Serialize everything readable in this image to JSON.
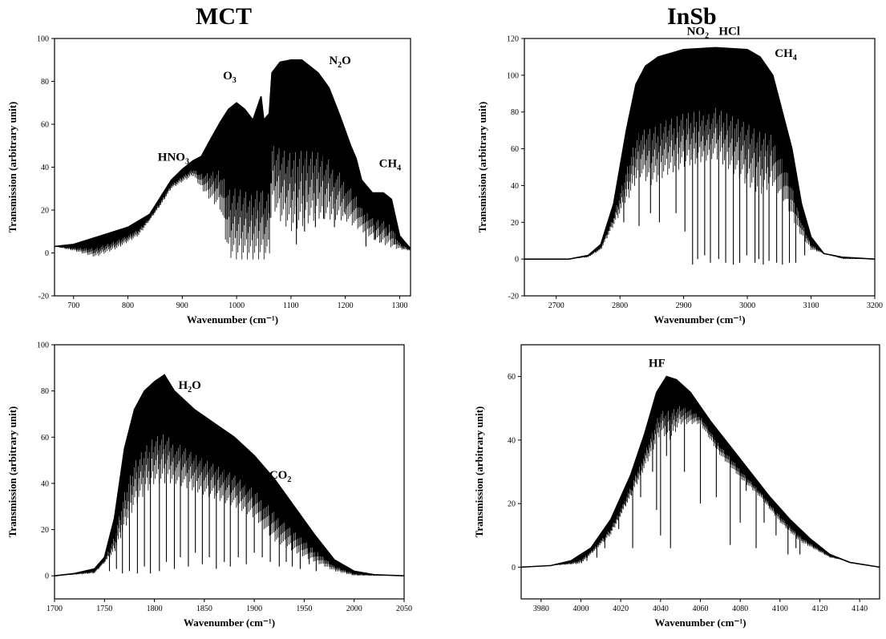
{
  "titles": {
    "left": "MCT",
    "right": "InSb"
  },
  "chart_data": [
    {
      "type": "line",
      "column": "MCT",
      "xlabel": "Wavenumber (cm⁻¹)",
      "ylabel": "Transmission (arbitrary unit)",
      "xlim": [
        665,
        1320
      ],
      "ylim": [
        -20,
        100
      ],
      "xticks": [
        700,
        800,
        900,
        1000,
        1100,
        1200,
        1300
      ],
      "yticks": [
        -20,
        0,
        20,
        40,
        60,
        80,
        100
      ],
      "envelope": [
        [
          665,
          3
        ],
        [
          700,
          4
        ],
        [
          750,
          8
        ],
        [
          800,
          12
        ],
        [
          840,
          18
        ],
        [
          860,
          26
        ],
        [
          880,
          34
        ],
        [
          900,
          39
        ],
        [
          920,
          43
        ],
        [
          935,
          45
        ],
        [
          950,
          52
        ],
        [
          970,
          61
        ],
        [
          985,
          67
        ],
        [
          1000,
          70
        ],
        [
          1015,
          67
        ],
        [
          1030,
          62
        ],
        [
          1045,
          73
        ],
        [
          1050,
          62
        ],
        [
          1060,
          65
        ],
        [
          1065,
          84
        ],
        [
          1080,
          89
        ],
        [
          1100,
          90
        ],
        [
          1120,
          90
        ],
        [
          1150,
          84
        ],
        [
          1170,
          77
        ],
        [
          1190,
          64
        ],
        [
          1210,
          50
        ],
        [
          1220,
          44
        ],
        [
          1230,
          34
        ],
        [
          1250,
          28
        ],
        [
          1270,
          28
        ],
        [
          1285,
          25
        ],
        [
          1300,
          8
        ],
        [
          1320,
          2
        ]
      ],
      "baseline": [
        [
          665,
          3
        ],
        [
          700,
          1
        ],
        [
          740,
          -2
        ],
        [
          780,
          2
        ],
        [
          820,
          8
        ],
        [
          840,
          15
        ],
        [
          860,
          22
        ],
        [
          880,
          30
        ],
        [
          900,
          33
        ],
        [
          920,
          36
        ],
        [
          935,
          30
        ],
        [
          950,
          25
        ],
        [
          970,
          20
        ],
        [
          985,
          -2
        ],
        [
          1000,
          -3
        ],
        [
          1020,
          -3
        ],
        [
          1045,
          -3
        ],
        [
          1060,
          -3
        ],
        [
          1065,
          22
        ],
        [
          1080,
          15
        ],
        [
          1100,
          10
        ],
        [
          1150,
          16
        ],
        [
          1200,
          15
        ],
        [
          1230,
          10
        ],
        [
          1260,
          5
        ],
        [
          1290,
          2
        ],
        [
          1320,
          1
        ]
      ],
      "dips": [
        [
          1110,
          4
        ],
        [
          1125,
          10
        ],
        [
          1145,
          12
        ],
        [
          1160,
          16
        ],
        [
          1180,
          12
        ],
        [
          1200,
          18
        ],
        [
          1238,
          3
        ],
        [
          1255,
          6
        ],
        [
          1266,
          5
        ],
        [
          1278,
          8
        ],
        [
          1290,
          4
        ],
        [
          1307,
          2
        ],
        [
          965,
          30
        ],
        [
          955,
          35
        ]
      ],
      "annotations": [
        {
          "label": "HNO",
          "sub": "3",
          "x": 855,
          "y": 43
        },
        {
          "label": "O",
          "sub": "3",
          "x": 975,
          "y": 81
        },
        {
          "label": "N",
          "sub": "2",
          "tail": "O",
          "x": 1170,
          "y": 88
        },
        {
          "label": "CH",
          "sub": "4",
          "x": 1262,
          "y": 40
        }
      ]
    },
    {
      "type": "line",
      "column": "InSb",
      "xlabel": "Wavenumber (cm⁻¹)",
      "ylabel": "Transmission (arbitrary unit)",
      "xlim": [
        2650,
        3200
      ],
      "ylim": [
        -20,
        120
      ],
      "xticks": [
        2700,
        2800,
        2900,
        3000,
        3100,
        3200
      ],
      "yticks": [
        -20,
        0,
        20,
        40,
        60,
        80,
        100,
        120
      ],
      "envelope": [
        [
          2650,
          0
        ],
        [
          2720,
          0
        ],
        [
          2750,
          2
        ],
        [
          2770,
          8
        ],
        [
          2790,
          30
        ],
        [
          2810,
          70
        ],
        [
          2825,
          95
        ],
        [
          2840,
          105
        ],
        [
          2860,
          110
        ],
        [
          2900,
          114
        ],
        [
          2950,
          115
        ],
        [
          3000,
          114
        ],
        [
          3020,
          110
        ],
        [
          3040,
          100
        ],
        [
          3055,
          80
        ],
        [
          3070,
          60
        ],
        [
          3085,
          30
        ],
        [
          3100,
          12
        ],
        [
          3120,
          3
        ],
        [
          3150,
          1
        ],
        [
          3200,
          0
        ]
      ],
      "baseline": [
        [
          2650,
          0
        ],
        [
          2720,
          0
        ],
        [
          2750,
          1
        ],
        [
          2770,
          5
        ],
        [
          2790,
          18
        ],
        [
          2810,
          30
        ],
        [
          2830,
          45
        ],
        [
          2850,
          40
        ],
        [
          2870,
          45
        ],
        [
          2900,
          50
        ],
        [
          2950,
          55
        ],
        [
          3000,
          40
        ],
        [
          3020,
          35
        ],
        [
          3040,
          40
        ],
        [
          3060,
          30
        ],
        [
          3080,
          15
        ],
        [
          3100,
          5
        ],
        [
          3150,
          0
        ],
        [
          3200,
          0
        ]
      ],
      "dips": [
        [
          2806,
          20
        ],
        [
          2830,
          18
        ],
        [
          2848,
          25
        ],
        [
          2862,
          20
        ],
        [
          2888,
          25
        ],
        [
          2902,
          15
        ],
        [
          2914,
          -3
        ],
        [
          2922,
          0
        ],
        [
          2933,
          2
        ],
        [
          2942,
          -2
        ],
        [
          2955,
          0
        ],
        [
          2966,
          -2
        ],
        [
          2978,
          -3
        ],
        [
          2988,
          -2
        ],
        [
          2999,
          2
        ],
        [
          3012,
          -2
        ],
        [
          3018,
          0
        ],
        [
          3025,
          -3
        ],
        [
          3034,
          -1
        ],
        [
          3046,
          -2
        ],
        [
          3055,
          -3
        ],
        [
          3066,
          -2
        ],
        [
          3076,
          -2
        ],
        [
          3090,
          2
        ]
      ],
      "annotations": [
        {
          "label": "NO",
          "sub": "2",
          "x": 2905,
          "y": 122
        },
        {
          "label": "HCl",
          "sub": "",
          "x": 2955,
          "y": 122
        },
        {
          "label": "CH",
          "sub": "4",
          "x": 3043,
          "y": 110
        }
      ]
    },
    {
      "type": "line",
      "column": "MCT",
      "xlabel": "Wavenumber (cm⁻¹)",
      "ylabel": "Transmission (arbitrary unit)",
      "xlim": [
        1700,
        2050
      ],
      "ylim": [
        -10,
        100
      ],
      "xticks": [
        1700,
        1750,
        1800,
        1850,
        1900,
        1950,
        2000,
        2050
      ],
      "yticks": [
        0,
        20,
        40,
        60,
        80,
        100
      ],
      "envelope": [
        [
          1700,
          0
        ],
        [
          1720,
          1
        ],
        [
          1740,
          3
        ],
        [
          1750,
          8
        ],
        [
          1760,
          25
        ],
        [
          1770,
          55
        ],
        [
          1780,
          72
        ],
        [
          1790,
          80
        ],
        [
          1800,
          84
        ],
        [
          1810,
          87
        ],
        [
          1820,
          80
        ],
        [
          1840,
          72
        ],
        [
          1860,
          66
        ],
        [
          1880,
          60
        ],
        [
          1900,
          52
        ],
        [
          1920,
          42
        ],
        [
          1940,
          30
        ],
        [
          1960,
          18
        ],
        [
          1980,
          7
        ],
        [
          2000,
          2
        ],
        [
          2020,
          0.5
        ],
        [
          2050,
          0
        ]
      ],
      "baseline": [
        [
          1700,
          0
        ],
        [
          1740,
          1
        ],
        [
          1760,
          10
        ],
        [
          1780,
          30
        ],
        [
          1800,
          40
        ],
        [
          1820,
          40
        ],
        [
          1850,
          35
        ],
        [
          1880,
          30
        ],
        [
          1900,
          25
        ],
        [
          1920,
          15
        ],
        [
          1950,
          8
        ],
        [
          1980,
          2
        ],
        [
          2000,
          0
        ],
        [
          2050,
          0
        ]
      ],
      "dips": [
        [
          1755,
          2
        ],
        [
          1762,
          3
        ],
        [
          1768,
          1
        ],
        [
          1775,
          2
        ],
        [
          1783,
          1
        ],
        [
          1790,
          4
        ],
        [
          1796,
          1
        ],
        [
          1805,
          2
        ],
        [
          1812,
          6
        ],
        [
          1820,
          3
        ],
        [
          1826,
          8
        ],
        [
          1834,
          4
        ],
        [
          1841,
          10
        ],
        [
          1848,
          5
        ],
        [
          1855,
          8
        ],
        [
          1862,
          3
        ],
        [
          1870,
          6
        ],
        [
          1876,
          4
        ],
        [
          1884,
          8
        ],
        [
          1892,
          5
        ],
        [
          1900,
          10
        ],
        [
          1908,
          8
        ],
        [
          1916,
          6
        ],
        [
          1925,
          4
        ],
        [
          1932,
          6
        ],
        [
          1938,
          4
        ],
        [
          1946,
          3
        ],
        [
          1955,
          5
        ],
        [
          1962,
          2
        ]
      ],
      "annotations": [
        {
          "label": "H",
          "sub": "2",
          "tail": "O",
          "x": 1824,
          "y": 81
        },
        {
          "label": "CO",
          "sub": "2",
          "x": 1915,
          "y": 42
        }
      ]
    },
    {
      "type": "line",
      "column": "InSb",
      "xlabel": "Wavenumber (cm⁻¹)",
      "ylabel": "Transmission (arbitrary unit)",
      "xlim": [
        3970,
        4150
      ],
      "ylim": [
        -10,
        70
      ],
      "xticks": [
        3980,
        4000,
        4020,
        4040,
        4060,
        4080,
        4100,
        4120,
        4140
      ],
      "yticks": [
        0,
        20,
        40,
        60
      ],
      "envelope": [
        [
          3970,
          0
        ],
        [
          3985,
          0.5
        ],
        [
          3995,
          2
        ],
        [
          4005,
          6
        ],
        [
          4015,
          15
        ],
        [
          4025,
          29
        ],
        [
          4032,
          42
        ],
        [
          4038,
          55
        ],
        [
          4043,
          60
        ],
        [
          4048,
          59
        ],
        [
          4055,
          55
        ],
        [
          4065,
          46
        ],
        [
          4075,
          38
        ],
        [
          4085,
          30
        ],
        [
          4095,
          22
        ],
        [
          4105,
          15
        ],
        [
          4115,
          9
        ],
        [
          4125,
          4
        ],
        [
          4135,
          1.5
        ],
        [
          4150,
          0
        ]
      ],
      "baseline": [
        [
          3970,
          0
        ],
        [
          4000,
          1
        ],
        [
          4015,
          10
        ],
        [
          4025,
          22
        ],
        [
          4035,
          35
        ],
        [
          4040,
          42
        ],
        [
          4045,
          40
        ],
        [
          4050,
          45
        ],
        [
          4060,
          45
        ],
        [
          4070,
          35
        ],
        [
          4080,
          28
        ],
        [
          4090,
          22
        ],
        [
          4100,
          14
        ],
        [
          4110,
          8
        ],
        [
          4125,
          3
        ],
        [
          4150,
          0
        ]
      ],
      "dips": [
        [
          4003,
          2
        ],
        [
          4008,
          3
        ],
        [
          4012,
          6
        ],
        [
          4015,
          14
        ],
        [
          4019,
          12
        ],
        [
          4022,
          20
        ],
        [
          4026,
          6
        ],
        [
          4030,
          22
        ],
        [
          4036,
          30
        ],
        [
          4038,
          18
        ],
        [
          4040,
          10
        ],
        [
          4043,
          35
        ],
        [
          4045,
          6
        ],
        [
          4052,
          30
        ],
        [
          4060,
          20
        ],
        [
          4068,
          22
        ],
        [
          4075,
          7
        ],
        [
          4080,
          14
        ],
        [
          4083,
          24
        ],
        [
          4088,
          6
        ],
        [
          4092,
          14
        ],
        [
          4098,
          10
        ],
        [
          4104,
          4
        ],
        [
          4108,
          6
        ],
        [
          4110,
          4
        ]
      ],
      "annotations": [
        {
          "label": "HF",
          "sub": "",
          "x": 4034,
          "y": 63
        }
      ]
    }
  ]
}
